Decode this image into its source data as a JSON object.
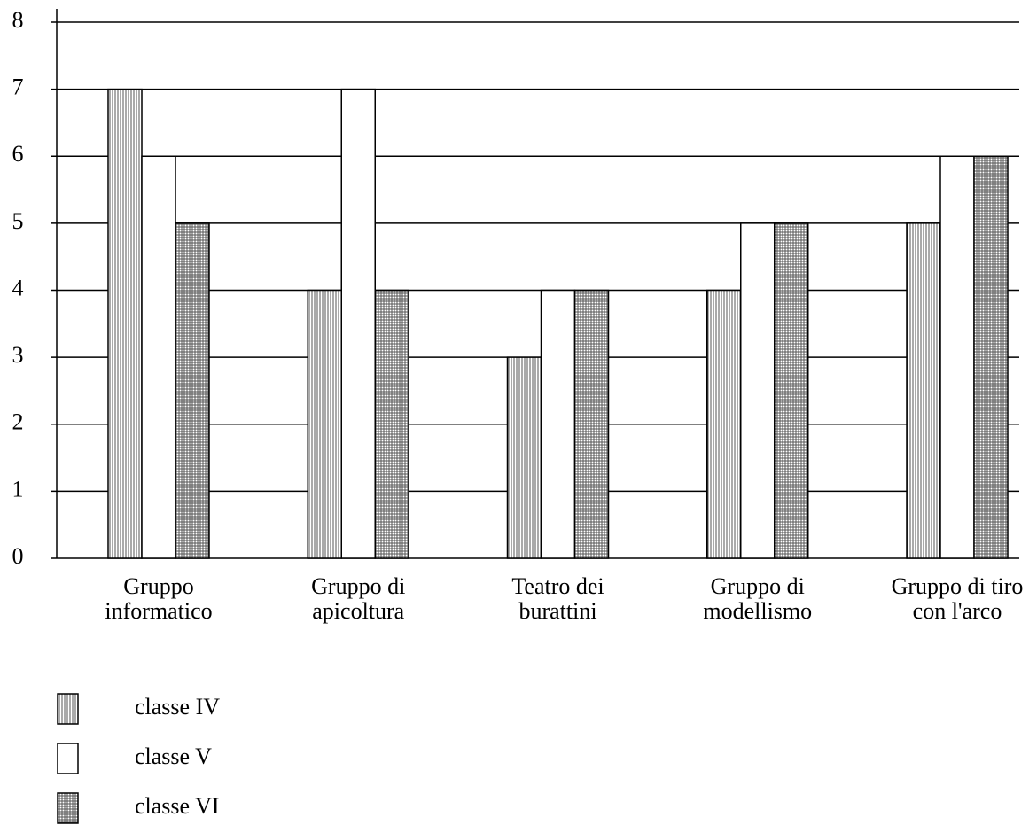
{
  "chart_data": {
    "type": "bar",
    "categories": [
      "Gruppo\ninformatico",
      "Gruppo di\napicoltura",
      "Teatro dei\nburattini",
      "Gruppo di\nmodellismo",
      "Gruppo di tiro\ncon l'arco"
    ],
    "series": [
      {
        "name": "classe IV",
        "color": "#ffffff",
        "pattern": "vertical",
        "values": [
          7,
          4,
          3,
          4,
          5
        ]
      },
      {
        "name": "classe V",
        "color": "#ffffff",
        "pattern": "none",
        "values": [
          6,
          7,
          4,
          5,
          6
        ]
      },
      {
        "name": "classe VI",
        "color": "#ffffff",
        "pattern": "grid",
        "values": [
          5,
          4,
          4,
          5,
          6
        ]
      }
    ],
    "ylim": [
      0,
      8
    ],
    "yticks": [
      0,
      1,
      2,
      3,
      4,
      5,
      6,
      7,
      8
    ],
    "grid": true,
    "legend": "bottom-left"
  }
}
